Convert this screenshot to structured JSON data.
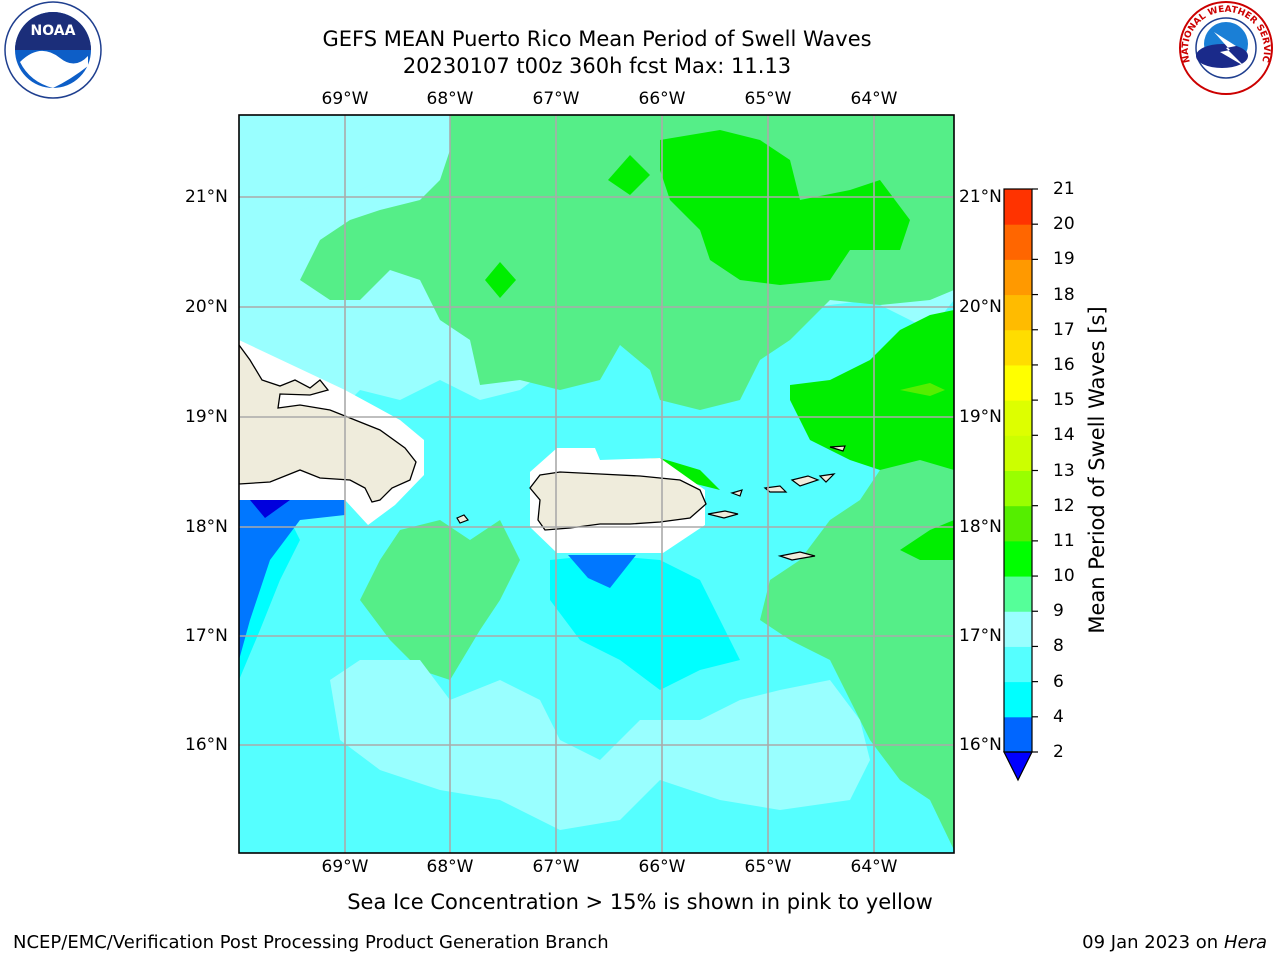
{
  "title": {
    "line1": "GEFS MEAN Puerto Rico Mean Period of Swell Waves",
    "line2": "20230107 t00z 360h fcst   Max: 11.13"
  },
  "map": {
    "lon_labels": [
      "69°W",
      "68°W",
      "67°W",
      "66°W",
      "65°W",
      "64°W"
    ],
    "lat_labels": [
      "21°N",
      "20°N",
      "19°N",
      "18°N",
      "17°N",
      "16°N"
    ],
    "extent": {
      "lon_min": -70.0,
      "lon_max": -63.25,
      "lat_min": 15.0,
      "lat_max": 21.75
    }
  },
  "colorbar": {
    "label": "Mean Period of Swell Waves [s]",
    "ticks": [
      "2",
      "4",
      "6",
      "8",
      "9",
      "10",
      "11",
      "12",
      "13",
      "14",
      "15",
      "16",
      "17",
      "18",
      "19",
      "20",
      "21"
    ],
    "colors": [
      "#0000ff",
      "#0066ff",
      "#00ffff",
      "#55ffff",
      "#99ffff",
      "#55ff99",
      "#00ff00",
      "#55ee00",
      "#99ff00",
      "#ccff00",
      "#ddff00",
      "#ffff00",
      "#ffdd00",
      "#ffbb00",
      "#ff9900",
      "#ff6600",
      "#ff3300",
      "#ff0000"
    ]
  },
  "subtitle": "Sea Ice Concentration > 15% is shown in pink to yellow",
  "footer": {
    "left": "NCEP/EMC/Verification Post Processing Product Generation Branch",
    "right_date": "09 Jan 2023 on ",
    "right_host": "Hera"
  },
  "logos": {
    "noaa": "NOAA",
    "nws": "NATIONAL WEATHER SERVICE"
  }
}
